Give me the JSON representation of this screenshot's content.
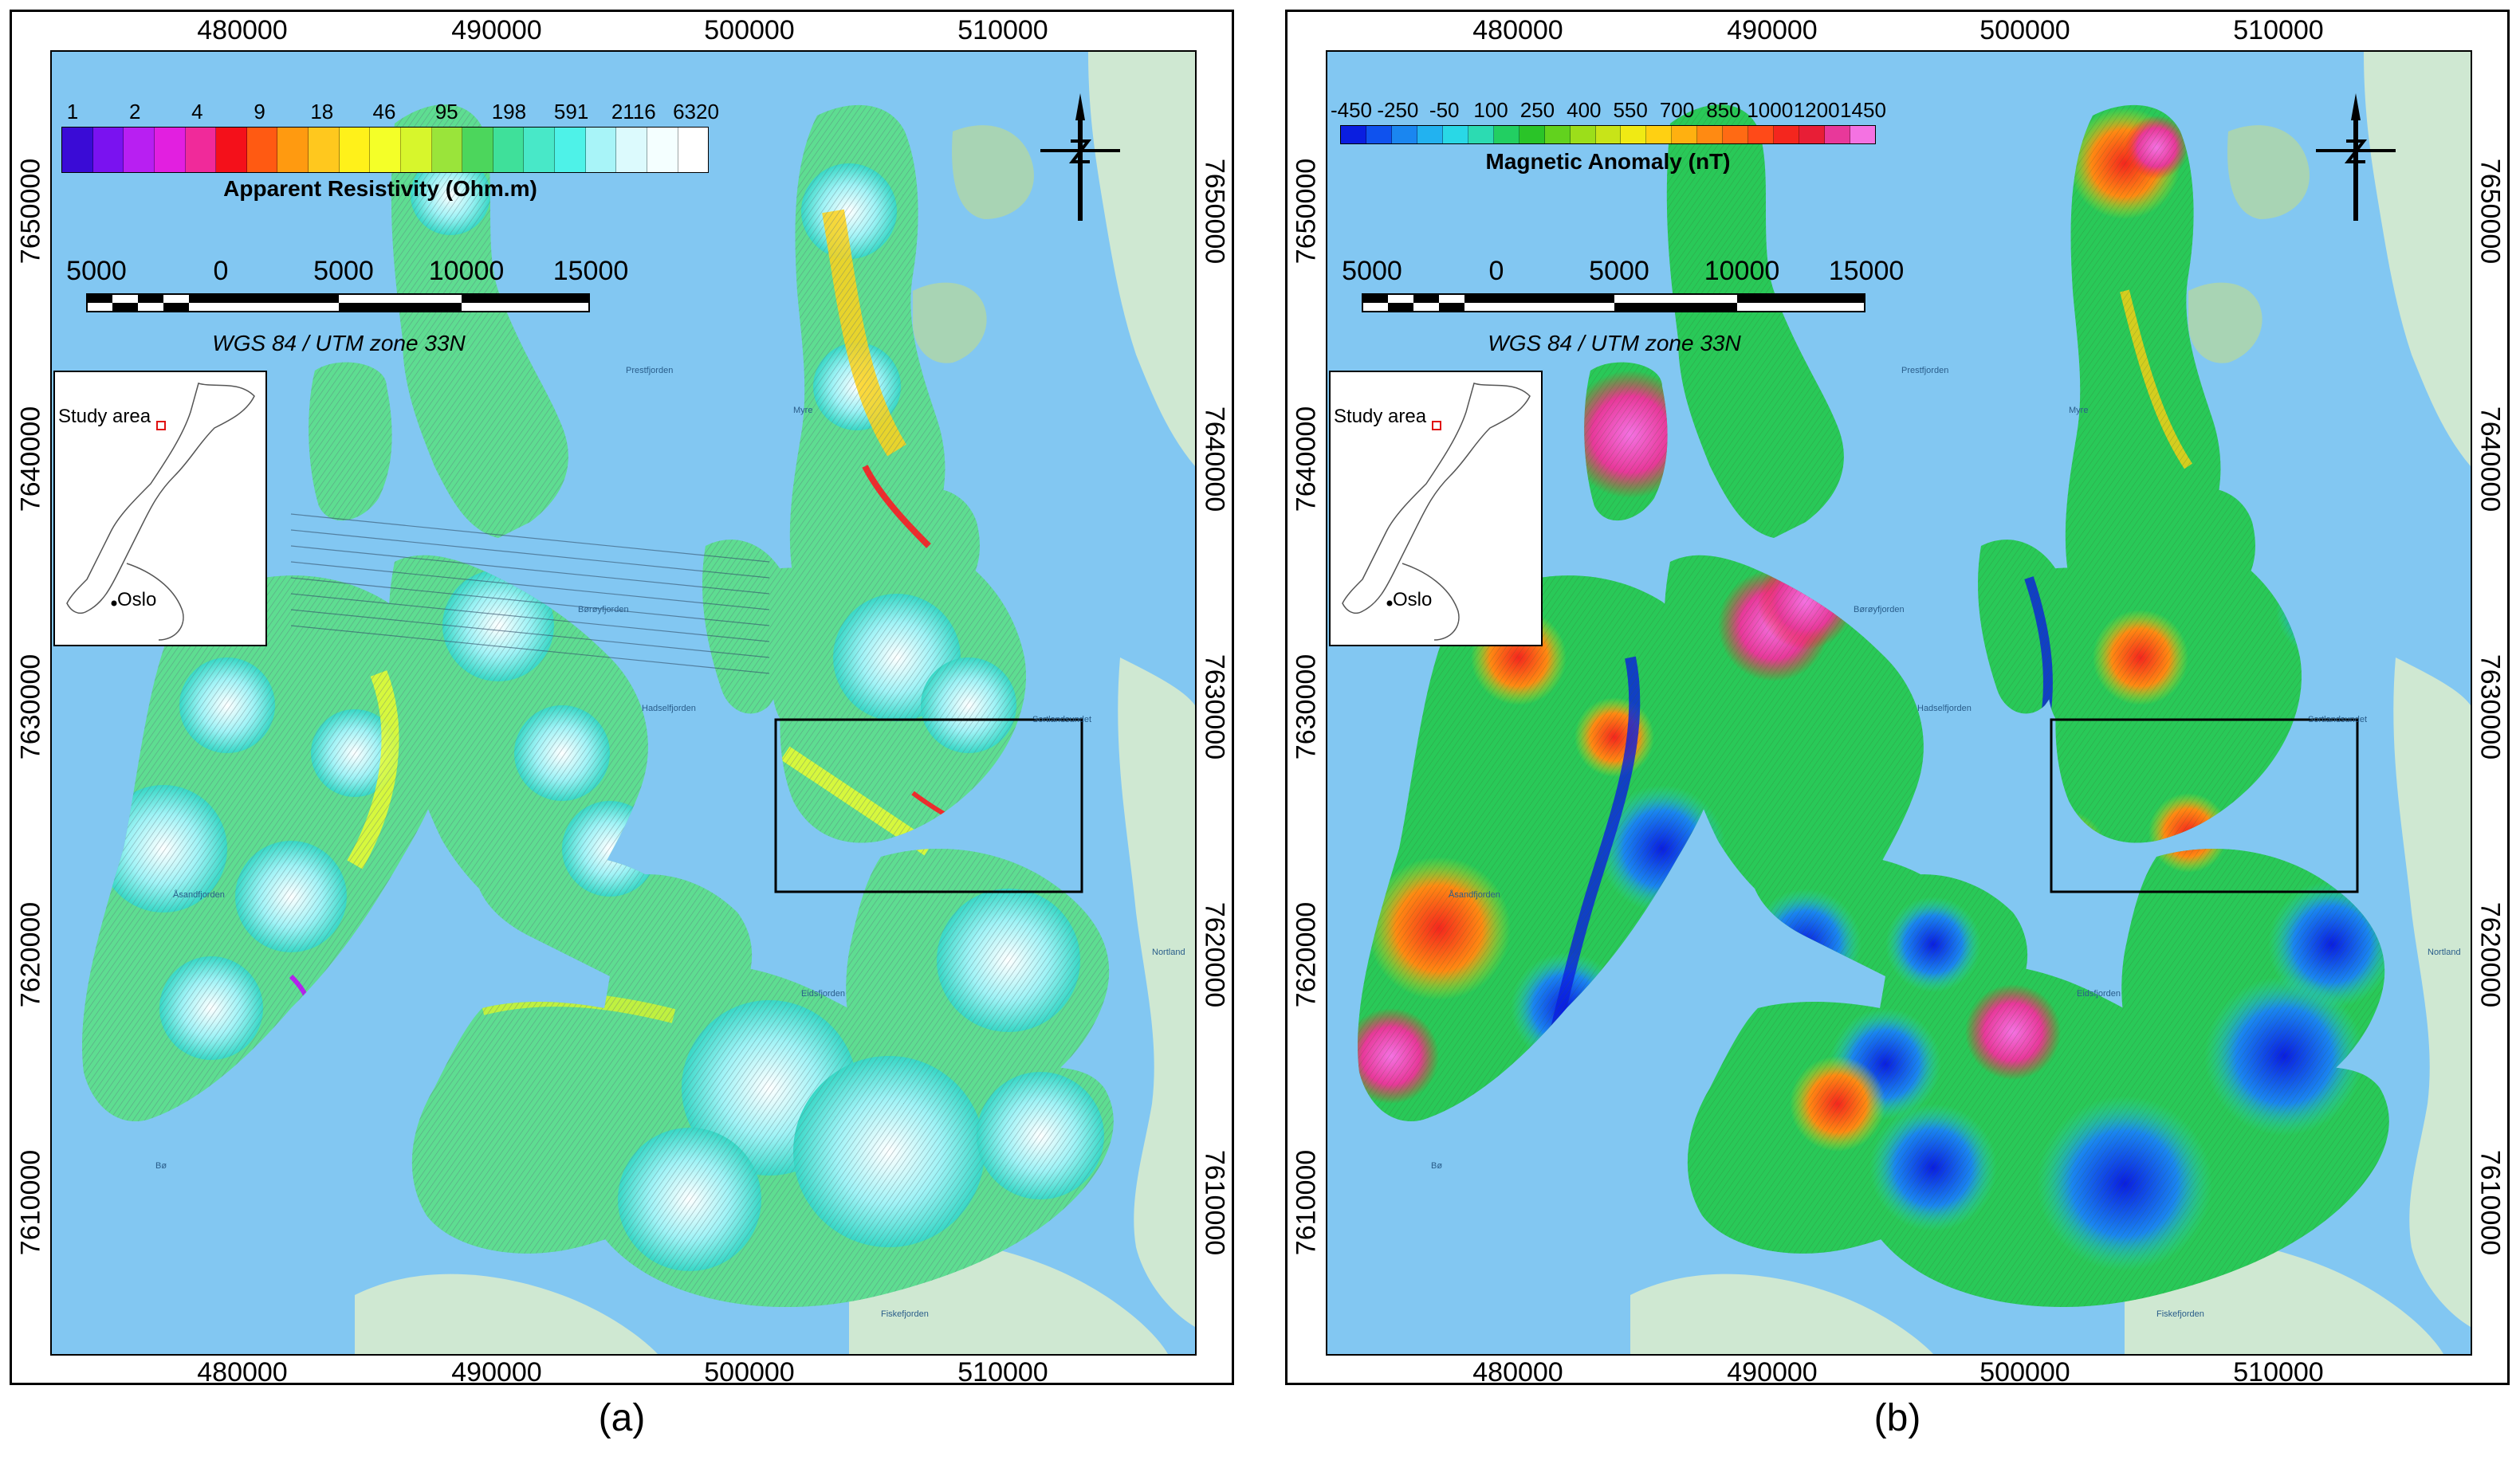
{
  "panels": [
    {
      "id": "a",
      "caption": "(a)",
      "legend_title": "Apparent Resistivity (Ohm.m)",
      "legend_ticks": [
        "1",
        "2",
        "4",
        "9",
        "18",
        "46",
        "95",
        "198",
        "591",
        "2116",
        "6320"
      ],
      "legend_colors": [
        "#3a0bd6",
        "#7a12f0",
        "#b81ff2",
        "#e21fe0",
        "#f02a9a",
        "#f4101a",
        "#ff5a12",
        "#ff9a10",
        "#ffc81e",
        "#fff11a",
        "#f4ff28",
        "#d7f62c",
        "#9ae43a",
        "#4cd65c",
        "#3fe09a",
        "#48e8c8",
        "#4ef2e8",
        "#a8f4f8",
        "#dcfafd",
        "#f4ffff",
        "#ffffff"
      ],
      "theme": "resistivity"
    },
    {
      "id": "b",
      "caption": "(b)",
      "legend_title": "Magnetic Anomaly (nT)",
      "legend_ticks": [
        "-450",
        "-250",
        "-50",
        "100",
        "250",
        "400",
        "550",
        "700",
        "850",
        "1000",
        "1200",
        "1450"
      ],
      "legend_colors": [
        "#0a1ee0",
        "#0f52ee",
        "#1a86f0",
        "#22b2f0",
        "#29d8e6",
        "#2cdbb2",
        "#22cf62",
        "#2ac428",
        "#62d21e",
        "#9cde1a",
        "#c8e418",
        "#f0ea14",
        "#ffd012",
        "#ffb010",
        "#ff8a12",
        "#ff6a14",
        "#ff4a18",
        "#f4261e",
        "#e81e36",
        "#e8389a",
        "#f472e2"
      ],
      "theme": "magnetic"
    }
  ],
  "axes": {
    "x_ticks": [
      "480000",
      "490000",
      "500000",
      "510000"
    ],
    "y_ticks": [
      "7650000",
      "7640000",
      "7630000",
      "7620000",
      "7610000"
    ]
  },
  "scale_bar": {
    "labels": [
      "5000",
      "0",
      "5000",
      "10000",
      "15000"
    ],
    "crs": "WGS 84 / UTM zone 33N"
  },
  "inset": {
    "study_area_label": "Study area",
    "city_label": "Oslo"
  },
  "basemap_labels": [
    "Prestfjorden",
    "Myre",
    "Børøyfjorden",
    "Hadselfjorden",
    "Åsandfjorden",
    "Eidsfjorden",
    "Nortland",
    "Bø",
    "Fiskefjorden",
    "Sortlandsundet"
  ],
  "colors": {
    "sea": "#82c7f2",
    "land": "#cfe8d2",
    "land_dark": "#a8d4b4",
    "frame": "#000000"
  }
}
